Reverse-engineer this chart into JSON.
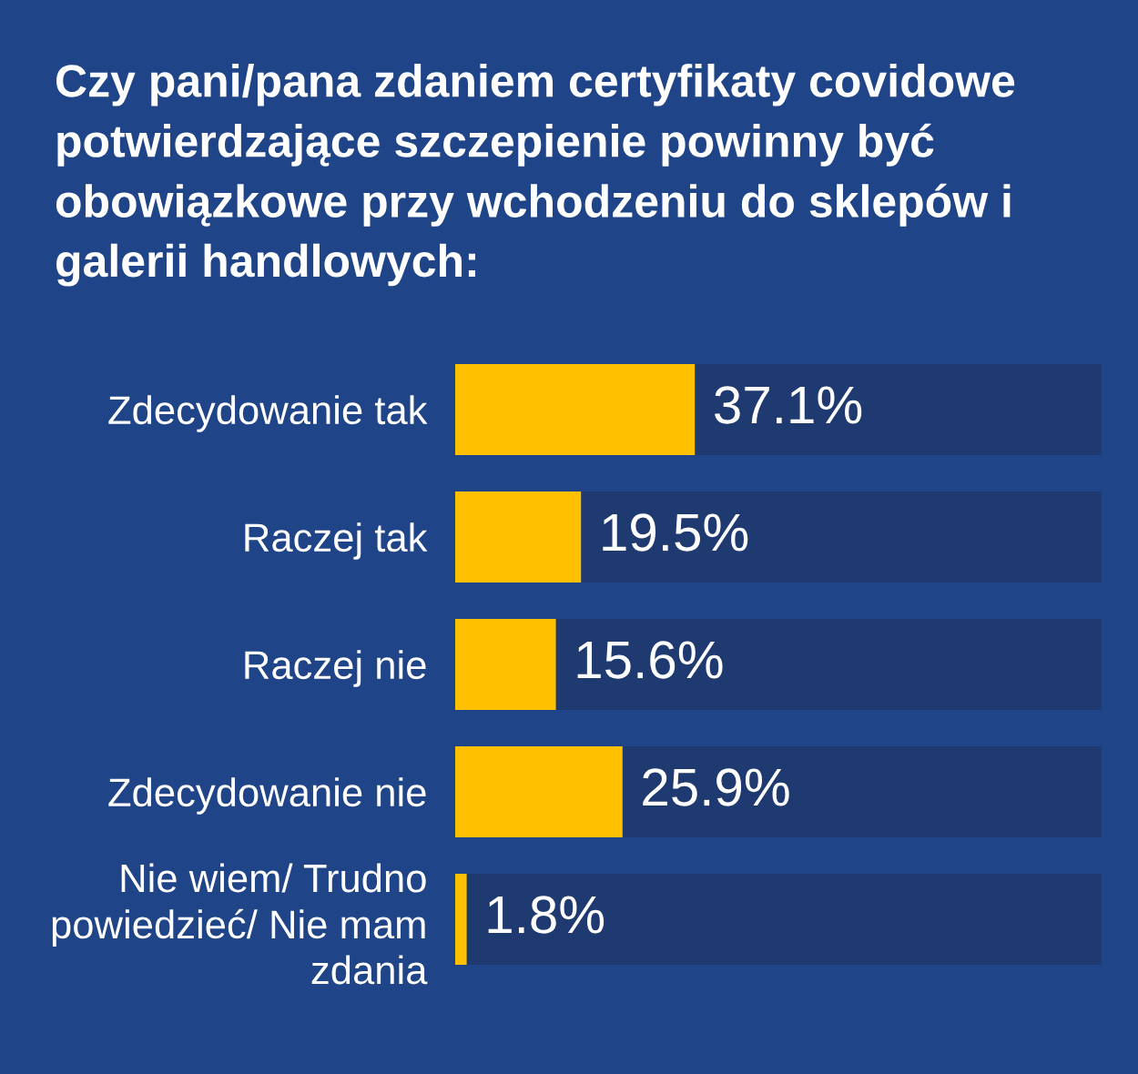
{
  "chart_data": {
    "type": "bar",
    "orientation": "horizontal",
    "stacked": true,
    "title": "Czy pani/pana zdaniem certyfikaty covidowe potwierdzające szczepienie powinny być obowiązkowe przy wchodzeniu do sklepów i galerii handlowych:",
    "categories": [
      "Zdecydowanie tak",
      "Raczej tak",
      "Raczej nie",
      "Zdecydowanie nie",
      "Nie wiem/ Trudno\npowiedzieć/ Nie mam\nzdania"
    ],
    "series": [
      {
        "color": "#ffc000",
        "values": [
          37.1,
          19.5,
          15.6,
          25.9,
          1.8
        ],
        "value_labels": [
          "37.1%",
          "19.5%",
          "15.6%",
          "25.9%",
          "1.8%"
        ]
      },
      {
        "color": "#1f3a70",
        "values": [
          62.9,
          80.5,
          84.4,
          74.1,
          98.2
        ]
      }
    ],
    "xlim": [
      0,
      100
    ],
    "tick_labels": "y"
  }
}
